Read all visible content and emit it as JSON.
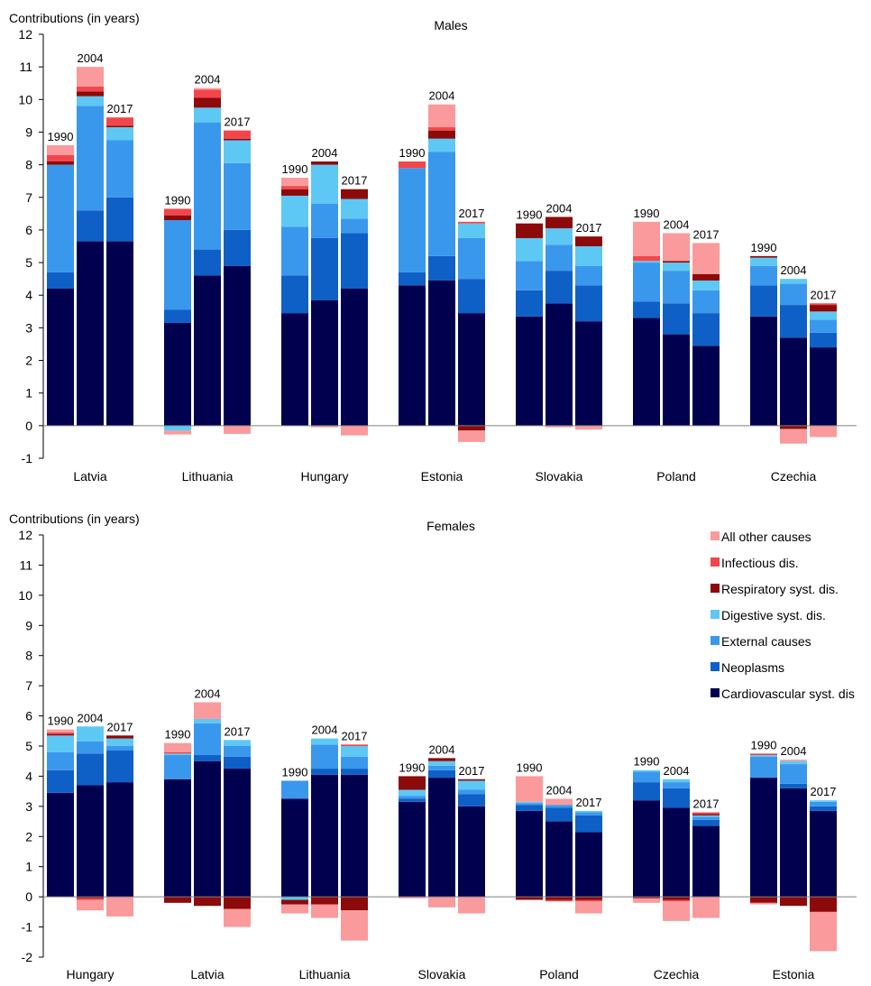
{
  "legend": [
    {
      "key": "other",
      "label": "All other causes",
      "color": "#fa9a9c"
    },
    {
      "key": "infectious",
      "label": "Infectious dis.",
      "color": "#f2464c"
    },
    {
      "key": "respiratory",
      "label": "Respiratory syst. dis.",
      "color": "#8c0a0a"
    },
    {
      "key": "digestive",
      "label": "Digestive syst. dis.",
      "color": "#5ec8f4"
    },
    {
      "key": "external",
      "label": "External causes",
      "color": "#3a98ec"
    },
    {
      "key": "neoplasms",
      "label": "Neoplasms",
      "color": "#0e60c6"
    },
    {
      "key": "cardio",
      "label": "Cardiovascular syst. dis",
      "color": "#00004e"
    }
  ],
  "chart_data": [
    {
      "type": "bar",
      "stacked": true,
      "title": "Males",
      "ylabel": "Contributions (in years)",
      "ylim": [
        -1,
        12
      ],
      "yticks": [
        -1,
        0,
        1,
        2,
        3,
        4,
        5,
        6,
        7,
        8,
        9,
        10,
        11,
        12
      ],
      "grid": false,
      "categories": [
        "Latvia",
        "Lithuania",
        "Hungary",
        "Estonia",
        "Slovakia",
        "Poland",
        "Czechia"
      ],
      "years": [
        "1990",
        "2004",
        "2017"
      ],
      "bars": [
        {
          "country": "Latvia",
          "year": "1990",
          "cardio": 4.2,
          "neoplasms": 0.5,
          "external": 3.3,
          "digestive": 0.0,
          "respiratory": 0.1,
          "infectious": 0.2,
          "other": 0.3
        },
        {
          "country": "Latvia",
          "year": "2004",
          "cardio": 5.65,
          "neoplasms": 0.95,
          "external": 3.2,
          "digestive": 0.3,
          "respiratory": 0.15,
          "infectious": 0.15,
          "other": 0.6
        },
        {
          "country": "Latvia",
          "year": "2017",
          "cardio": 5.65,
          "neoplasms": 1.35,
          "external": 1.75,
          "digestive": 0.4,
          "respiratory": 0.05,
          "infectious": 0.25,
          "other": 0.0
        },
        {
          "country": "Lithuania",
          "year": "1990",
          "cardio": 3.15,
          "neoplasms": 0.4,
          "external": 2.75,
          "digestive": -0.15,
          "respiratory": 0.15,
          "infectious": 0.2,
          "other": -0.12
        },
        {
          "country": "Lithuania",
          "year": "2004",
          "cardio": 4.6,
          "neoplasms": 0.8,
          "external": 3.9,
          "digestive": 0.45,
          "respiratory": 0.3,
          "infectious": 0.25,
          "other": 0.05
        },
        {
          "country": "Lithuania",
          "year": "2017",
          "cardio": 4.9,
          "neoplasms": 1.1,
          "external": 2.05,
          "digestive": 0.7,
          "respiratory": 0.05,
          "infectious": 0.25,
          "other": -0.25
        },
        {
          "country": "Hungary",
          "year": "1990",
          "cardio": 3.45,
          "neoplasms": 1.15,
          "external": 1.5,
          "digestive": 0.95,
          "respiratory": 0.2,
          "infectious": 0.1,
          "other": 0.25
        },
        {
          "country": "Hungary",
          "year": "2004",
          "cardio": 3.85,
          "neoplasms": 1.9,
          "external": 1.05,
          "digestive": 1.2,
          "respiratory": 0.1,
          "infectious": 0.0,
          "other": -0.05
        },
        {
          "country": "Hungary",
          "year": "2017",
          "cardio": 4.2,
          "neoplasms": 1.7,
          "external": 0.45,
          "digestive": 0.6,
          "respiratory": 0.3,
          "infectious": 0.0,
          "other": -0.3
        },
        {
          "country": "Estonia",
          "year": "1990",
          "cardio": 4.3,
          "neoplasms": 0.4,
          "external": 3.2,
          "digestive": 0.0,
          "respiratory": 0.0,
          "infectious": 0.2,
          "other": 0.0
        },
        {
          "country": "Estonia",
          "year": "2004",
          "cardio": 4.45,
          "neoplasms": 0.75,
          "external": 3.2,
          "digestive": 0.4,
          "respiratory": 0.25,
          "infectious": 0.1,
          "other": 0.7
        },
        {
          "country": "Estonia",
          "year": "2017",
          "cardio": 3.45,
          "neoplasms": 1.05,
          "external": 1.25,
          "digestive": 0.45,
          "respiratory": -0.15,
          "infectious": 0.05,
          "other": -0.35
        },
        {
          "country": "Slovakia",
          "year": "1990",
          "cardio": 3.35,
          "neoplasms": 0.8,
          "external": 0.9,
          "digestive": 0.7,
          "respiratory": 0.45,
          "infectious": 0.0,
          "other": 0.0
        },
        {
          "country": "Slovakia",
          "year": "2004",
          "cardio": 3.75,
          "neoplasms": 1.0,
          "external": 0.8,
          "digestive": 0.5,
          "respiratory": 0.35,
          "infectious": 0.0,
          "other": -0.05
        },
        {
          "country": "Slovakia",
          "year": "2017",
          "cardio": 3.2,
          "neoplasms": 1.1,
          "external": 0.6,
          "digestive": 0.6,
          "respiratory": 0.3,
          "infectious": 0.0,
          "other": -0.12
        },
        {
          "country": "Poland",
          "year": "1990",
          "cardio": 3.3,
          "neoplasms": 0.5,
          "external": 1.2,
          "digestive": 0.05,
          "respiratory": 0.0,
          "infectious": 0.15,
          "other": 1.05
        },
        {
          "country": "Poland",
          "year": "2004",
          "cardio": 2.8,
          "neoplasms": 0.95,
          "external": 1.0,
          "digestive": 0.25,
          "respiratory": 0.05,
          "infectious": 0.0,
          "other": 0.85
        },
        {
          "country": "Poland",
          "year": "2017",
          "cardio": 2.45,
          "neoplasms": 1.0,
          "external": 0.7,
          "digestive": 0.3,
          "respiratory": 0.2,
          "infectious": 0.0,
          "other": 0.95
        },
        {
          "country": "Czechia",
          "year": "1990",
          "cardio": 3.35,
          "neoplasms": 0.95,
          "external": 0.6,
          "digestive": 0.25,
          "respiratory": 0.05,
          "infectious": 0.0,
          "other": 0.0
        },
        {
          "country": "Czechia",
          "year": "2004",
          "cardio": 2.7,
          "neoplasms": 1.0,
          "external": 0.65,
          "digestive": 0.15,
          "respiratory": -0.1,
          "infectious": 0.0,
          "other": -0.45
        },
        {
          "country": "Czechia",
          "year": "2017",
          "cardio": 2.4,
          "neoplasms": 0.45,
          "external": 0.4,
          "digestive": 0.25,
          "respiratory": 0.2,
          "infectious": 0.05,
          "other": -0.35
        }
      ]
    },
    {
      "type": "bar",
      "stacked": true,
      "title": "Females",
      "ylabel": "Contributions (in years)",
      "ylim": [
        -2,
        12
      ],
      "yticks": [
        -2,
        -1,
        0,
        1,
        2,
        3,
        4,
        5,
        6,
        7,
        8,
        9,
        10,
        11,
        12
      ],
      "grid": false,
      "legend_position": "top-right",
      "categories": [
        "Hungary",
        "Latvia",
        "Lithuania",
        "Slovakia",
        "Poland",
        "Czechia",
        "Estonia"
      ],
      "years": [
        "1990",
        "2004",
        "2017"
      ],
      "bars": [
        {
          "country": "Hungary",
          "year": "1990",
          "cardio": 3.45,
          "neoplasms": 0.75,
          "external": 0.6,
          "digestive": 0.55,
          "respiratory": 0.05,
          "infectious": 0.05,
          "other": 0.1
        },
        {
          "country": "Hungary",
          "year": "2004",
          "cardio": 3.7,
          "neoplasms": 1.05,
          "external": 0.4,
          "digestive": 0.5,
          "respiratory": -0.05,
          "infectious": -0.05,
          "other": -0.35
        },
        {
          "country": "Hungary",
          "year": "2017",
          "cardio": 3.8,
          "neoplasms": 1.05,
          "external": 0.15,
          "digestive": 0.25,
          "respiratory": 0.1,
          "infectious": 0.0,
          "other": -0.65
        },
        {
          "country": "Latvia",
          "year": "1990",
          "cardio": 3.9,
          "neoplasms": 0.0,
          "external": 0.8,
          "digestive": 0.05,
          "respiratory": -0.2,
          "infectious": 0.05,
          "other": 0.3
        },
        {
          "country": "Latvia",
          "year": "2004",
          "cardio": 4.5,
          "neoplasms": 0.2,
          "external": 1.05,
          "digestive": 0.15,
          "respiratory": -0.3,
          "infectious": 0.0,
          "other": 0.55
        },
        {
          "country": "Latvia",
          "year": "2017",
          "cardio": 4.25,
          "neoplasms": 0.4,
          "external": 0.35,
          "digestive": 0.2,
          "respiratory": -0.4,
          "infectious": 0.0,
          "other": -0.6
        },
        {
          "country": "Lithuania",
          "year": "1990",
          "cardio": 3.25,
          "neoplasms": 0.0,
          "external": 0.6,
          "digestive": -0.1,
          "respiratory": -0.15,
          "infectious": 0.0,
          "other": -0.3
        },
        {
          "country": "Lithuania",
          "year": "2004",
          "cardio": 4.05,
          "neoplasms": 0.2,
          "external": 0.8,
          "digestive": 0.2,
          "respiratory": -0.25,
          "infectious": 0.0,
          "other": -0.45
        },
        {
          "country": "Lithuania",
          "year": "2017",
          "cardio": 4.05,
          "neoplasms": 0.2,
          "external": 0.4,
          "digestive": 0.35,
          "respiratory": -0.45,
          "infectious": 0.05,
          "other": -1.0
        },
        {
          "country": "Slovakia",
          "year": "1990",
          "cardio": 3.15,
          "neoplasms": 0.1,
          "external": 0.1,
          "digestive": 0.2,
          "respiratory": 0.45,
          "infectious": 0.0,
          "other": -0.05
        },
        {
          "country": "Slovakia",
          "year": "2004",
          "cardio": 3.95,
          "neoplasms": 0.25,
          "external": 0.15,
          "digestive": 0.15,
          "respiratory": 0.1,
          "infectious": 0.0,
          "other": -0.35
        },
        {
          "country": "Slovakia",
          "year": "2017",
          "cardio": 3.0,
          "neoplasms": 0.4,
          "external": 0.15,
          "digestive": 0.3,
          "respiratory": 0.05,
          "infectious": 0.0,
          "other": -0.55
        },
        {
          "country": "Poland",
          "year": "1990",
          "cardio": 2.85,
          "neoplasms": 0.2,
          "external": 0.05,
          "digestive": 0.05,
          "respiratory": -0.1,
          "infectious": 0.0,
          "other": 0.85
        },
        {
          "country": "Poland",
          "year": "2004",
          "cardio": 2.5,
          "neoplasms": 0.45,
          "external": 0.1,
          "digestive": 0.0,
          "respiratory": -0.1,
          "infectious": -0.05,
          "other": 0.2
        },
        {
          "country": "Poland",
          "year": "2017",
          "cardio": 2.15,
          "neoplasms": 0.55,
          "external": 0.1,
          "digestive": 0.05,
          "respiratory": -0.1,
          "infectious": -0.05,
          "other": -0.4
        },
        {
          "country": "Czechia",
          "year": "1990",
          "cardio": 3.2,
          "neoplasms": 0.6,
          "external": 0.35,
          "digestive": 0.05,
          "respiratory": -0.05,
          "infectious": 0.0,
          "other": -0.15
        },
        {
          "country": "Czechia",
          "year": "2004",
          "cardio": 2.95,
          "neoplasms": 0.65,
          "external": 0.2,
          "digestive": 0.1,
          "respiratory": -0.1,
          "infectious": -0.05,
          "other": -0.65
        },
        {
          "country": "Czechia",
          "year": "2017",
          "cardio": 2.35,
          "neoplasms": 0.2,
          "external": 0.1,
          "digestive": 0.05,
          "respiratory": 0.05,
          "infectious": 0.05,
          "other": -0.7
        },
        {
          "country": "Estonia",
          "year": "1990",
          "cardio": 3.95,
          "neoplasms": 0.0,
          "external": 0.7,
          "digestive": 0.05,
          "respiratory": -0.2,
          "infectious": 0.05,
          "other": -0.05
        },
        {
          "country": "Estonia",
          "year": "2004",
          "cardio": 3.6,
          "neoplasms": 0.15,
          "external": 0.65,
          "digestive": 0.1,
          "respiratory": -0.3,
          "infectious": 0.0,
          "other": 0.05
        },
        {
          "country": "Estonia",
          "year": "2017",
          "cardio": 2.85,
          "neoplasms": 0.15,
          "external": 0.15,
          "digestive": 0.05,
          "respiratory": -0.5,
          "infectious": 0.0,
          "other": -1.3
        }
      ]
    }
  ]
}
